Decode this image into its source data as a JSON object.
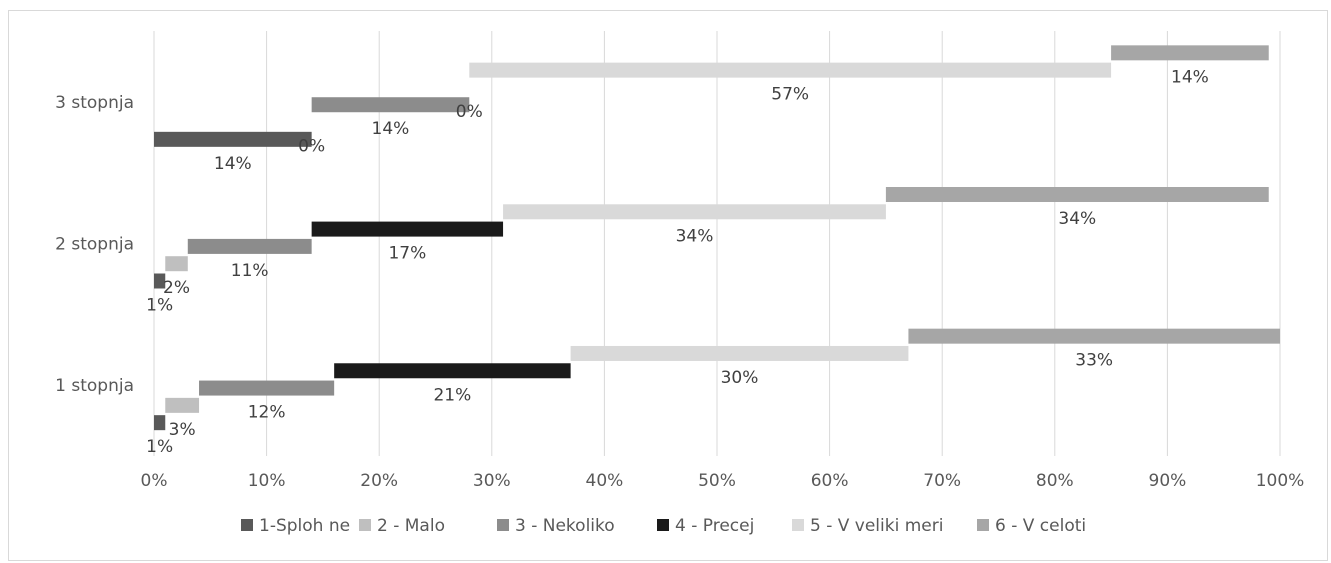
{
  "chart_data": {
    "type": "bar",
    "orientation": "horizontal-stacked-100",
    "categories": [
      "1 stopnja",
      "2 stopnja",
      "3 stopnja"
    ],
    "xlim": [
      0,
      100
    ],
    "x_ticks": [
      "0%",
      "10%",
      "20%",
      "30%",
      "40%",
      "50%",
      "60%",
      "70%",
      "80%",
      "90%",
      "100%"
    ],
    "grid": "vertical",
    "legend_position": "bottom",
    "series": [
      {
        "name": "1-Sploh ne",
        "color": "#595959",
        "values": [
          1,
          1,
          14
        ],
        "labels": [
          "1%",
          "1%",
          "14%"
        ]
      },
      {
        "name": "2 - Malo",
        "color": "#bfbfbf",
        "values": [
          3,
          2,
          0
        ],
        "labels": [
          "3%",
          "2%",
          "0%"
        ]
      },
      {
        "name": "3 - Nekoliko",
        "color": "#8c8c8c",
        "values": [
          12,
          11,
          14
        ],
        "labels": [
          "12%",
          "11%",
          "14%"
        ]
      },
      {
        "name": "4 - Precej",
        "color": "#1a1a1a",
        "values": [
          21,
          17,
          0
        ],
        "labels": [
          "21%",
          "17%",
          "0%"
        ]
      },
      {
        "name": "5 - V veliki meri",
        "color": "#d9d9d9",
        "values": [
          30,
          34,
          57
        ],
        "labels": [
          "30%",
          "34%",
          "57%"
        ]
      },
      {
        "name": "6 - V celoti",
        "color": "#a6a6a6",
        "values": [
          33,
          34,
          14
        ],
        "labels": [
          "33%",
          "34%",
          "14%"
        ]
      }
    ]
  }
}
